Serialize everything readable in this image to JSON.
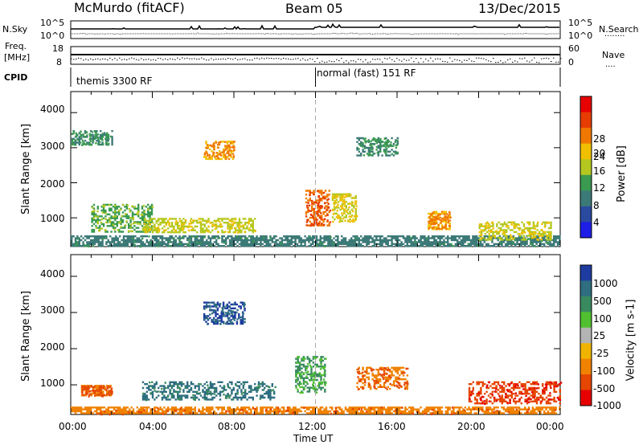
{
  "header": {
    "station": "McMurdo (fitACF)",
    "beam": "Beam 05",
    "date": "13/Dec/2015"
  },
  "noise_panel": {
    "left_label": "N.Sky",
    "right_label": "N.Search",
    "right_dots": "........",
    "ticks_left": [
      "10^5",
      "10^0"
    ],
    "ticks_right": [
      "10^5",
      "10^0"
    ]
  },
  "freq_panel": {
    "left_label_line1": "Freq.",
    "left_label_line2": "[MHz]",
    "right_label": "Nave",
    "right_dots": "....",
    "ticks_left": [
      "18",
      "8"
    ],
    "ticks_right": [
      "60",
      "0"
    ]
  },
  "cpid_panel": {
    "label": "CPID",
    "modes": [
      "themis 3300 RF",
      "normal (fast) 151 RF"
    ]
  },
  "power_panel": {
    "ylabel": "Slant Range [km]",
    "yticks": [
      "4000",
      "3000",
      "2000",
      "1000"
    ],
    "colorbar_label": "Power [dB]",
    "colorbar_ticks": [
      "28",
      "24",
      "20",
      "16",
      "12",
      "8",
      "4"
    ],
    "colors": [
      "#1e1ee6",
      "#2a4aa0",
      "#3c7a78",
      "#3a9a50",
      "#b4c820",
      "#f0c000",
      "#f07800",
      "#e63c00",
      "#e60000"
    ]
  },
  "velocity_panel": {
    "ylabel": "Slant Range [km]",
    "yticks": [
      "4000",
      "3000",
      "2000",
      "1000"
    ],
    "colorbar_label": "Velocity [m s-1]",
    "colorbar_ticks": [
      "1000",
      "500",
      "100",
      "25",
      "-25",
      "-100",
      "-500",
      "-1000"
    ],
    "colors": [
      "#1e3ca0",
      "#2e6e80",
      "#3a8a60",
      "#50c030",
      "#b4b4b4",
      "#f0b400",
      "#f08200",
      "#e64600",
      "#e60000"
    ]
  },
  "x_axis": {
    "ticks": [
      "00:00",
      "04:00",
      "08:00",
      "12:00",
      "16:00",
      "20:00",
      "00:00"
    ],
    "label": "Time UT"
  },
  "chart_data": [
    {
      "type": "heatmap",
      "title": "Power",
      "xlabel": "Time UT",
      "ylabel": "Slant Range [km]",
      "xlim": [
        0,
        24
      ],
      "ylim": [
        180,
        4600
      ],
      "colorbar": {
        "label": "Power [dB]",
        "ticks": [
          4,
          8,
          12,
          16,
          20,
          24,
          28
        ]
      },
      "scatter_regions": [
        {
          "t_start": 0.0,
          "t_end": 24.0,
          "r_start": 200,
          "r_end": 500,
          "level": 9
        },
        {
          "t_start": 1.0,
          "t_end": 4.0,
          "r_start": 600,
          "r_end": 1400,
          "level": 14
        },
        {
          "t_start": 3.5,
          "t_end": 9.0,
          "r_start": 600,
          "r_end": 1000,
          "level": 18
        },
        {
          "t_start": 6.5,
          "t_end": 8.0,
          "r_start": 2700,
          "r_end": 3200,
          "level": 20
        },
        {
          "t_start": 11.5,
          "t_end": 12.7,
          "r_start": 800,
          "r_end": 1800,
          "level": 24
        },
        {
          "t_start": 12.8,
          "t_end": 14.0,
          "r_start": 900,
          "r_end": 1700,
          "level": 18
        },
        {
          "t_start": 17.5,
          "t_end": 18.6,
          "r_start": 700,
          "r_end": 1200,
          "level": 20
        },
        {
          "t_start": 20.0,
          "t_end": 23.5,
          "r_start": 400,
          "r_end": 900,
          "level": 16
        },
        {
          "t_start": 0.0,
          "t_end": 2.0,
          "r_start": 3100,
          "r_end": 3500,
          "level": 10
        },
        {
          "t_start": 14.0,
          "t_end": 16.0,
          "r_start": 2800,
          "r_end": 3300,
          "level": 10
        }
      ]
    },
    {
      "type": "heatmap",
      "title": "Velocity",
      "xlabel": "Time UT",
      "ylabel": "Slant Range [km]",
      "xlim": [
        0,
        24
      ],
      "ylim": [
        180,
        4600
      ],
      "colorbar": {
        "label": "Velocity [m s-1]",
        "ticks": [
          -1000,
          -500,
          -100,
          -25,
          25,
          100,
          500,
          1000
        ]
      },
      "scatter_regions": [
        {
          "t_start": 0.0,
          "t_end": 24.0,
          "r_start": 200,
          "r_end": 400,
          "level": -100
        },
        {
          "t_start": 3.5,
          "t_end": 10.0,
          "r_start": 600,
          "r_end": 1100,
          "level": 300
        },
        {
          "t_start": 6.5,
          "t_end": 8.5,
          "r_start": 2700,
          "r_end": 3300,
          "level": 700
        },
        {
          "t_start": 11.0,
          "t_end": 12.5,
          "r_start": 800,
          "r_end": 1800,
          "level": 100
        },
        {
          "t_start": 14.0,
          "t_end": 16.5,
          "r_start": 900,
          "r_end": 1500,
          "level": -300
        },
        {
          "t_start": 19.5,
          "t_end": 24.0,
          "r_start": 500,
          "r_end": 1100,
          "level": -600
        },
        {
          "t_start": 0.5,
          "t_end": 2.0,
          "r_start": 700,
          "r_end": 1000,
          "level": -300
        }
      ]
    }
  ]
}
